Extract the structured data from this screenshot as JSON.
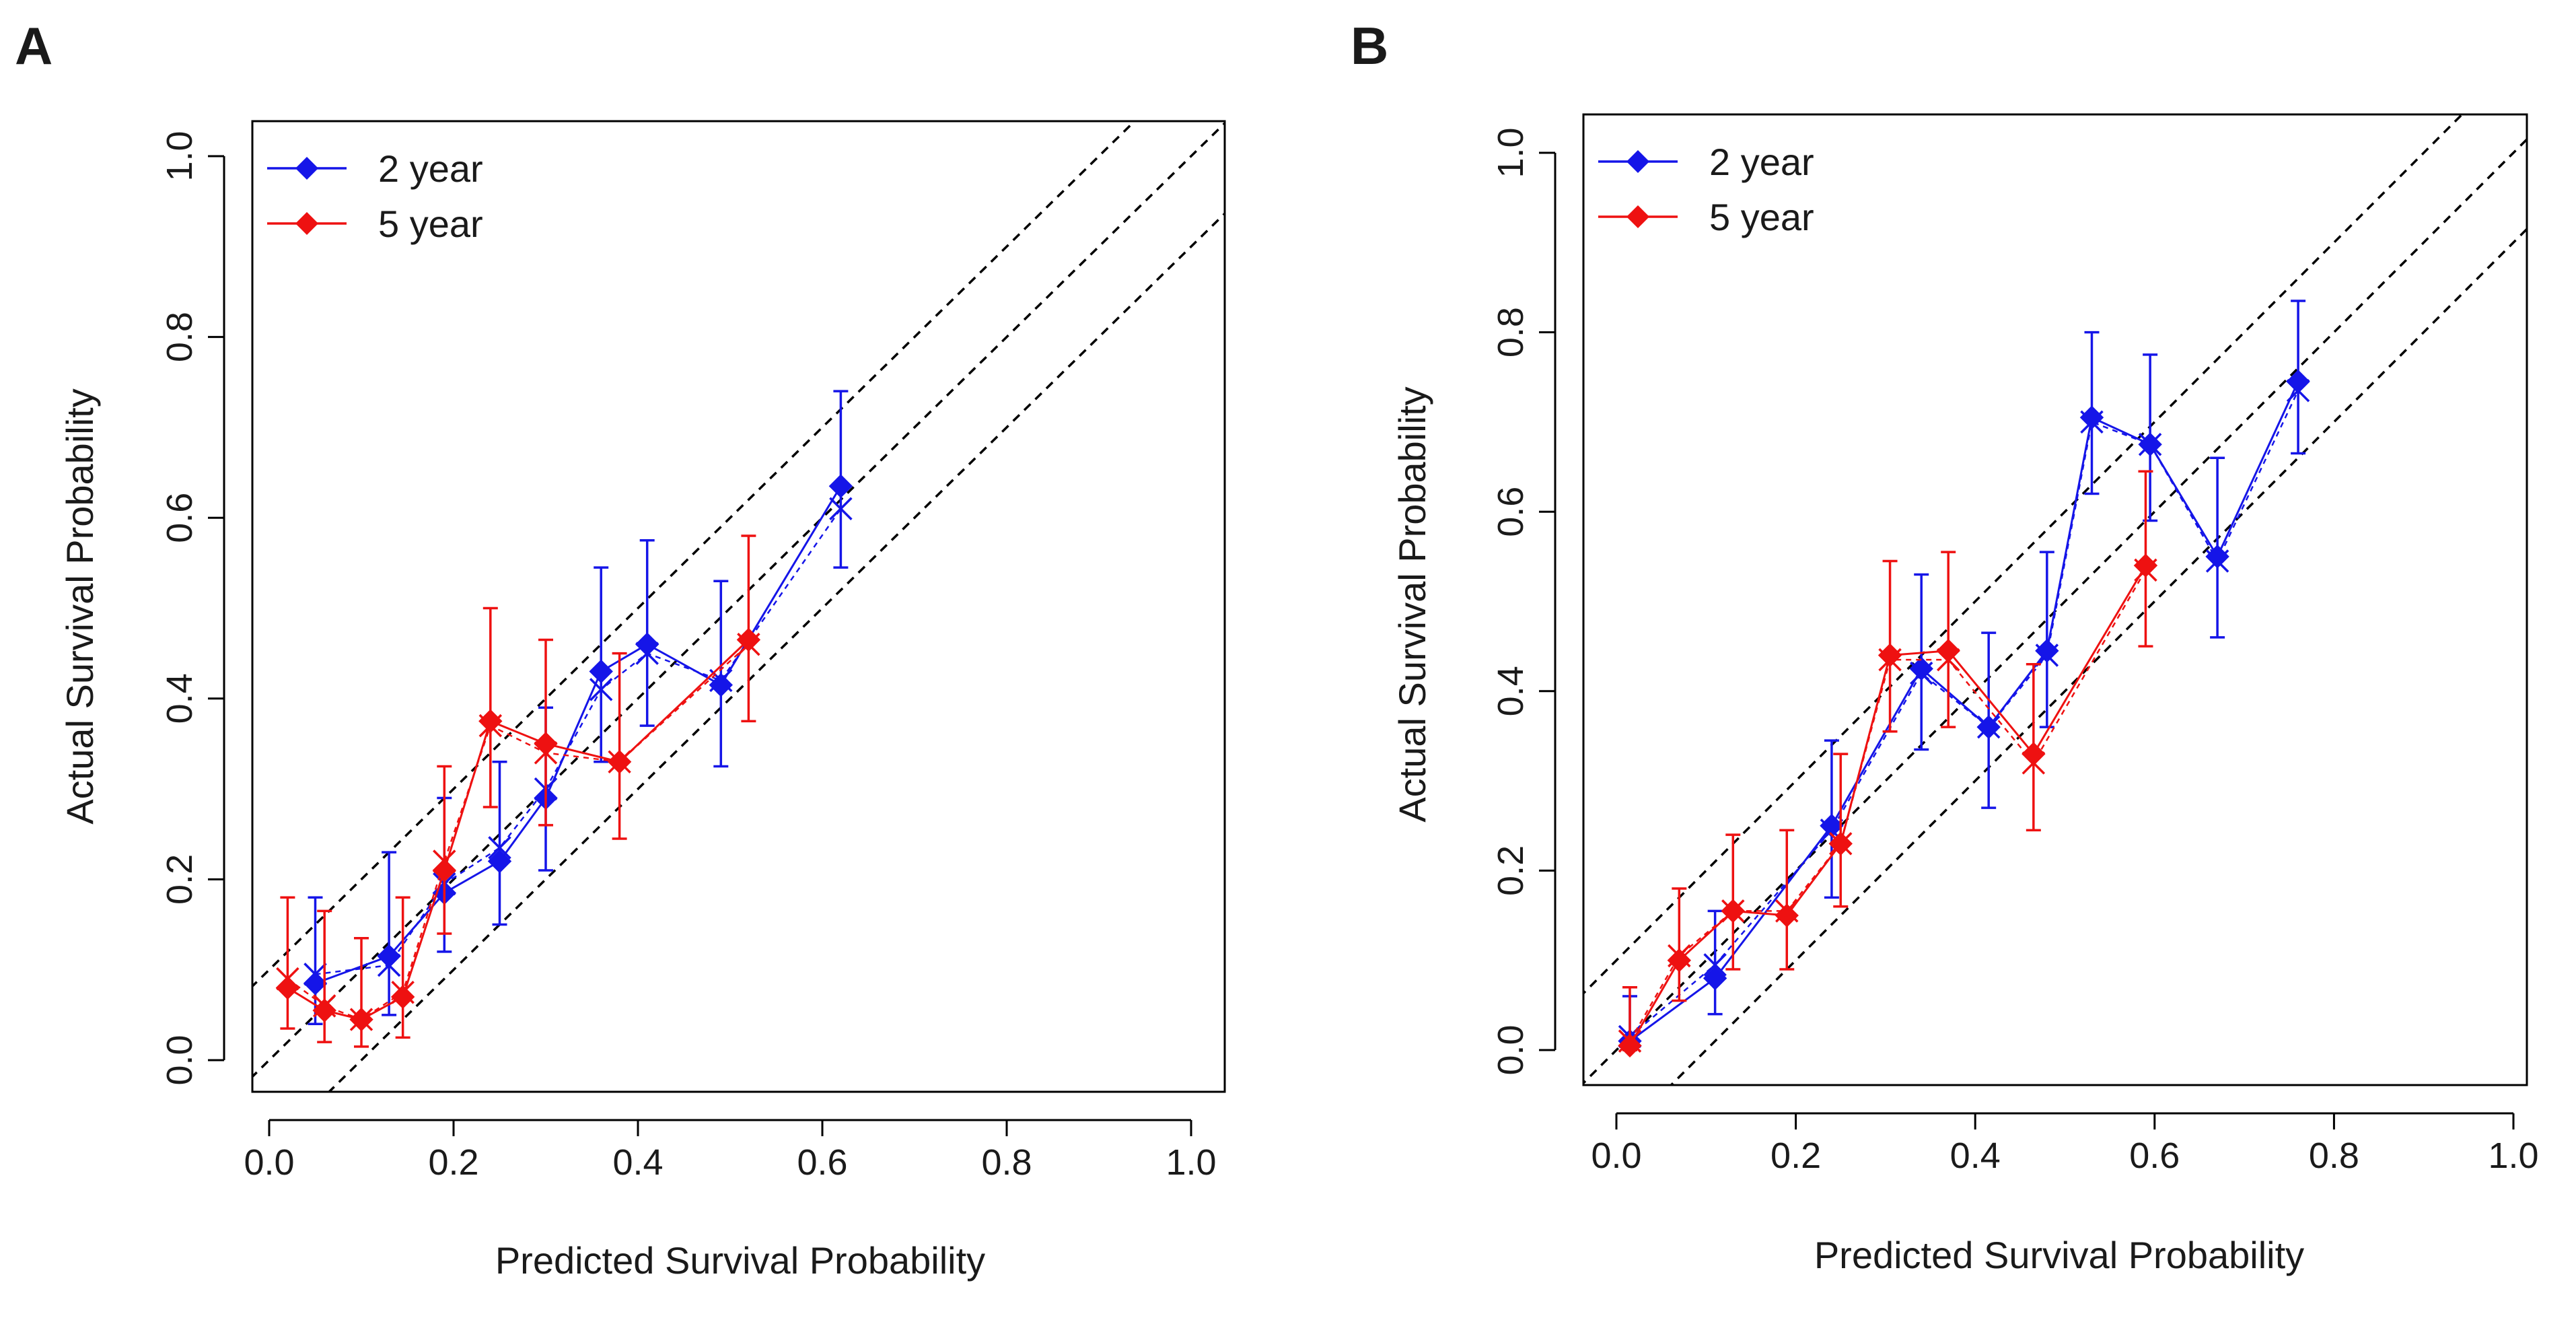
{
  "colors": {
    "blue": "#1515e8",
    "red": "#ee1111",
    "axis": "#000000",
    "reference": "#000000"
  },
  "chart_data": [
    {
      "panel_label": "A",
      "type": "scatter",
      "xlabel": "Predicted Survival Probability",
      "ylabel": "Actual Survival Probability",
      "xlim": [
        0,
        1
      ],
      "ylim": [
        0,
        1
      ],
      "xticks": [
        "0.0",
        "0.2",
        "0.4",
        "0.6",
        "0.8",
        "1.0"
      ],
      "yticks": [
        "0.0",
        "0.2",
        "0.4",
        "0.6",
        "0.8",
        "1.0"
      ],
      "reference_lines": [
        {
          "intercept": 0.0
        },
        {
          "intercept": 0.1
        },
        {
          "intercept": -0.1
        }
      ],
      "legend": {
        "position": "top-left",
        "entries": [
          "2 year",
          "5 year"
        ]
      },
      "series": [
        {
          "name": "2 year",
          "color": "#1515e8",
          "points": [
            {
              "x": 0.05,
              "y": 0.085,
              "lo": 0.04,
              "hi": 0.18,
              "xc": 0.05,
              "yc": 0.095
            },
            {
              "x": 0.13,
              "y": 0.115,
              "lo": 0.05,
              "hi": 0.23,
              "xc": 0.13,
              "yc": 0.105
            },
            {
              "x": 0.19,
              "y": 0.185,
              "lo": 0.12,
              "hi": 0.29,
              "xc": 0.19,
              "yc": 0.195
            },
            {
              "x": 0.25,
              "y": 0.22,
              "lo": 0.15,
              "hi": 0.33,
              "xc": 0.25,
              "yc": 0.235
            },
            {
              "x": 0.3,
              "y": 0.29,
              "lo": 0.21,
              "hi": 0.39,
              "xc": 0.3,
              "yc": 0.3
            },
            {
              "x": 0.36,
              "y": 0.43,
              "lo": 0.33,
              "hi": 0.545,
              "xc": 0.36,
              "yc": 0.41
            },
            {
              "x": 0.41,
              "y": 0.46,
              "lo": 0.37,
              "hi": 0.575,
              "xc": 0.41,
              "yc": 0.45
            },
            {
              "x": 0.49,
              "y": 0.415,
              "lo": 0.325,
              "hi": 0.53,
              "xc": 0.49,
              "yc": 0.42
            },
            {
              "x": 0.62,
              "y": 0.635,
              "lo": 0.545,
              "hi": 0.74,
              "xc": 0.62,
              "yc": 0.61
            }
          ]
        },
        {
          "name": "5 year",
          "color": "#ee1111",
          "points": [
            {
              "x": 0.02,
              "y": 0.08,
              "lo": 0.035,
              "hi": 0.18,
              "xc": 0.02,
              "yc": 0.09
            },
            {
              "x": 0.06,
              "y": 0.055,
              "lo": 0.02,
              "hi": 0.165,
              "xc": 0.06,
              "yc": 0.06
            },
            {
              "x": 0.1,
              "y": 0.045,
              "lo": 0.015,
              "hi": 0.135,
              "xc": 0.1,
              "yc": 0.045
            },
            {
              "x": 0.145,
              "y": 0.07,
              "lo": 0.025,
              "hi": 0.18,
              "xc": 0.145,
              "yc": 0.075
            },
            {
              "x": 0.19,
              "y": 0.21,
              "lo": 0.14,
              "hi": 0.325,
              "xc": 0.19,
              "yc": 0.22
            },
            {
              "x": 0.24,
              "y": 0.375,
              "lo": 0.28,
              "hi": 0.5,
              "xc": 0.24,
              "yc": 0.37
            },
            {
              "x": 0.3,
              "y": 0.35,
              "lo": 0.26,
              "hi": 0.465,
              "xc": 0.3,
              "yc": 0.34
            },
            {
              "x": 0.38,
              "y": 0.33,
              "lo": 0.245,
              "hi": 0.45,
              "xc": 0.38,
              "yc": 0.33
            },
            {
              "x": 0.52,
              "y": 0.465,
              "lo": 0.375,
              "hi": 0.58,
              "xc": 0.52,
              "yc": 0.46
            }
          ]
        }
      ]
    },
    {
      "panel_label": "B",
      "type": "scatter",
      "xlabel": "Predicted Survival Probability",
      "ylabel": "Actual Survival Probability",
      "xlim": [
        0,
        1
      ],
      "ylim": [
        0,
        1
      ],
      "xticks": [
        "0.0",
        "0.2",
        "0.4",
        "0.6",
        "0.8",
        "1.0"
      ],
      "yticks": [
        "0.0",
        "0.2",
        "0.4",
        "0.6",
        "0.8",
        "1.0"
      ],
      "reference_lines": [
        {
          "intercept": 0.0
        },
        {
          "intercept": 0.1
        },
        {
          "intercept": -0.1
        }
      ],
      "legend": {
        "position": "top-left",
        "entries": [
          "2 year",
          "5 year"
        ]
      },
      "series": [
        {
          "name": "2 year",
          "color": "#1515e8",
          "points": [
            {
              "x": 0.015,
              "y": 0.01,
              "lo": 0.0,
              "hi": 0.06,
              "xc": 0.015,
              "yc": 0.015
            },
            {
              "x": 0.11,
              "y": 0.08,
              "lo": 0.04,
              "hi": 0.155,
              "xc": 0.11,
              "yc": 0.095
            },
            {
              "x": 0.24,
              "y": 0.25,
              "lo": 0.17,
              "hi": 0.345,
              "xc": 0.24,
              "yc": 0.245
            },
            {
              "x": 0.34,
              "y": 0.425,
              "lo": 0.335,
              "hi": 0.53,
              "xc": 0.34,
              "yc": 0.42
            },
            {
              "x": 0.415,
              "y": 0.36,
              "lo": 0.27,
              "hi": 0.465,
              "xc": 0.415,
              "yc": 0.36
            },
            {
              "x": 0.48,
              "y": 0.445,
              "lo": 0.36,
              "hi": 0.555,
              "xc": 0.48,
              "yc": 0.44
            },
            {
              "x": 0.53,
              "y": 0.705,
              "lo": 0.62,
              "hi": 0.8,
              "xc": 0.53,
              "yc": 0.7
            },
            {
              "x": 0.595,
              "y": 0.675,
              "lo": 0.59,
              "hi": 0.775,
              "xc": 0.595,
              "yc": 0.675
            },
            {
              "x": 0.67,
              "y": 0.55,
              "lo": 0.46,
              "hi": 0.66,
              "xc": 0.67,
              "yc": 0.545
            },
            {
              "x": 0.76,
              "y": 0.745,
              "lo": 0.665,
              "hi": 0.835,
              "xc": 0.76,
              "yc": 0.735
            }
          ]
        },
        {
          "name": "5 year",
          "color": "#ee1111",
          "points": [
            {
              "x": 0.015,
              "y": 0.005,
              "lo": 0.0,
              "hi": 0.07,
              "xc": 0.015,
              "yc": 0.01
            },
            {
              "x": 0.07,
              "y": 0.1,
              "lo": 0.055,
              "hi": 0.18,
              "xc": 0.07,
              "yc": 0.105
            },
            {
              "x": 0.13,
              "y": 0.155,
              "lo": 0.09,
              "hi": 0.24,
              "xc": 0.13,
              "yc": 0.155
            },
            {
              "x": 0.19,
              "y": 0.15,
              "lo": 0.09,
              "hi": 0.245,
              "xc": 0.19,
              "yc": 0.155
            },
            {
              "x": 0.25,
              "y": 0.23,
              "lo": 0.16,
              "hi": 0.33,
              "xc": 0.25,
              "yc": 0.23
            },
            {
              "x": 0.305,
              "y": 0.44,
              "lo": 0.355,
              "hi": 0.545,
              "xc": 0.305,
              "yc": 0.435
            },
            {
              "x": 0.37,
              "y": 0.445,
              "lo": 0.36,
              "hi": 0.555,
              "xc": 0.37,
              "yc": 0.435
            },
            {
              "x": 0.465,
              "y": 0.33,
              "lo": 0.245,
              "hi": 0.43,
              "xc": 0.465,
              "yc": 0.32
            },
            {
              "x": 0.59,
              "y": 0.54,
              "lo": 0.45,
              "hi": 0.645,
              "xc": 0.59,
              "yc": 0.535
            }
          ]
        }
      ]
    }
  ]
}
